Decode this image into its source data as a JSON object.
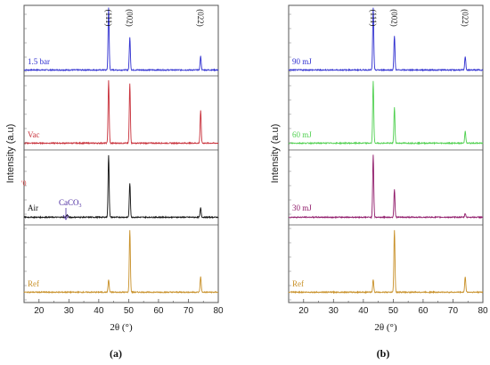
{
  "figure": {
    "y_axis_label": "Intensity (a.u)",
    "x_axis_label": "2θ (°)"
  },
  "chart_data": [
    {
      "type": "line",
      "panel_label": "(a)",
      "xlabel": "2θ (°)",
      "ylabel": "Intensity (a.u)",
      "xlim": [
        15,
        80
      ],
      "x_ticks": [
        20,
        30,
        40,
        50,
        60,
        70,
        80
      ],
      "y_ticks_visible": false,
      "peak_labels": [
        {
          "text": "(111)",
          "x": 43.3
        },
        {
          "text": "(002)",
          "x": 50.4
        },
        {
          "text": "(022)",
          "x": 74.1
        }
      ],
      "series": [
        {
          "name": "1.5 bar",
          "color": "#3030d0",
          "peaks": [
            {
              "x": 43.3,
              "height": 1.0
            },
            {
              "x": 50.4,
              "height": 0.52
            },
            {
              "x": 74.1,
              "height": 0.22
            }
          ]
        },
        {
          "name": "Vac",
          "color": "#c8303a",
          "peaks": [
            {
              "x": 43.3,
              "height": 1.0
            },
            {
              "x": 50.4,
              "height": 0.95
            },
            {
              "x": 74.1,
              "height": 0.52
            }
          ]
        },
        {
          "name": "Air",
          "color": "#111111",
          "peaks": [
            {
              "x": 29.4,
              "height": 0.04
            },
            {
              "x": 43.3,
              "height": 1.0
            },
            {
              "x": 50.4,
              "height": 0.55
            },
            {
              "x": 74.1,
              "height": 0.15
            }
          ]
        },
        {
          "name": "Ref",
          "color": "#c89028",
          "peaks": [
            {
              "x": 43.3,
              "height": 0.2
            },
            {
              "x": 50.4,
              "height": 1.0
            },
            {
              "x": 74.1,
              "height": 0.25
            }
          ]
        }
      ],
      "annotation": {
        "text": "CaCO",
        "subscript": "3",
        "x": 29.4,
        "series": "Air"
      },
      "stray_mark": "'0"
    },
    {
      "type": "line",
      "panel_label": "(b)",
      "xlabel": "2θ (°)",
      "ylabel": "Intensity (a.u)",
      "xlim": [
        15,
        80
      ],
      "x_ticks": [
        20,
        30,
        40,
        50,
        60,
        70,
        80
      ],
      "y_ticks_visible": false,
      "peak_labels": [
        {
          "text": "(111)",
          "x": 43.3
        },
        {
          "text": "(002)",
          "x": 50.4
        },
        {
          "text": "(022)",
          "x": 74.1
        }
      ],
      "series": [
        {
          "name": "90 mJ",
          "color": "#3030d0",
          "peaks": [
            {
              "x": 43.3,
              "height": 1.0
            },
            {
              "x": 50.4,
              "height": 0.55
            },
            {
              "x": 74.1,
              "height": 0.22
            }
          ]
        },
        {
          "name": "60 mJ",
          "color": "#50d050",
          "peaks": [
            {
              "x": 43.3,
              "height": 1.0
            },
            {
              "x": 50.4,
              "height": 0.57
            },
            {
              "x": 74.1,
              "height": 0.2
            }
          ]
        },
        {
          "name": "30 mJ",
          "color": "#901a6a",
          "peaks": [
            {
              "x": 43.3,
              "height": 1.0
            },
            {
              "x": 50.4,
              "height": 0.45
            },
            {
              "x": 74.1,
              "height": 0.06
            }
          ]
        },
        {
          "name": "Ref",
          "color": "#c89028",
          "peaks": [
            {
              "x": 43.3,
              "height": 0.2
            },
            {
              "x": 50.4,
              "height": 1.0
            },
            {
              "x": 74.1,
              "height": 0.25
            }
          ]
        }
      ]
    }
  ]
}
